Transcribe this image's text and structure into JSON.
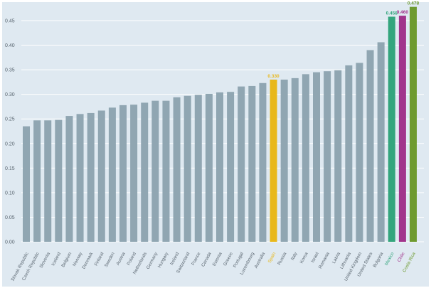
{
  "colors": {
    "background": "#dfe9f1",
    "gridline": "#ffffff",
    "bar_default": "#90a6b2"
  },
  "chart_data": {
    "type": "bar",
    "title": "",
    "xlabel": "",
    "ylabel": "",
    "ylim": [
      0,
      0.48
    ],
    "yticks": [
      "0.00",
      "0.05",
      "0.10",
      "0.15",
      "0.20",
      "0.25",
      "0.30",
      "0.35",
      "0.40",
      "0.45"
    ],
    "grid": true,
    "categories": [
      "Slovak Republic",
      "Czech Republic",
      "Slovenia",
      "Iceland",
      "Belgium",
      "Norway",
      "Denmark",
      "Finland",
      "Sweden",
      "Austria",
      "Poland",
      "Netherlands",
      "Germany",
      "Hungary",
      "Ireland",
      "Switzerland",
      "France",
      "Canada",
      "Estonia",
      "Greece",
      "Portugal",
      "Luxembourg",
      "Australia",
      "Spain",
      "Russia",
      "Italy",
      "Korea",
      "Israel",
      "Romania",
      "Latvia",
      "Lithuania",
      "United Kingdom",
      "United States",
      "Bulgaria",
      "Mexico",
      "Chile",
      "Costa Rica"
    ],
    "values": [
      0.235,
      0.247,
      0.247,
      0.248,
      0.256,
      0.26,
      0.262,
      0.267,
      0.273,
      0.278,
      0.279,
      0.283,
      0.287,
      0.287,
      0.294,
      0.297,
      0.299,
      0.301,
      0.304,
      0.305,
      0.316,
      0.317,
      0.323,
      0.33,
      0.33,
      0.333,
      0.341,
      0.345,
      0.347,
      0.349,
      0.359,
      0.364,
      0.39,
      0.406,
      0.458,
      0.46,
      0.478
    ],
    "highlights": [
      {
        "category": "Spain",
        "color": "#e8b81b",
        "label": "0.330"
      },
      {
        "category": "Mexico",
        "color": "#34a57d",
        "label": "0.458"
      },
      {
        "category": "Chile",
        "color": "#a1348c",
        "label": "0.460"
      },
      {
        "category": "Costa Rica",
        "color": "#6e9a2f",
        "label": "0.478"
      }
    ]
  }
}
